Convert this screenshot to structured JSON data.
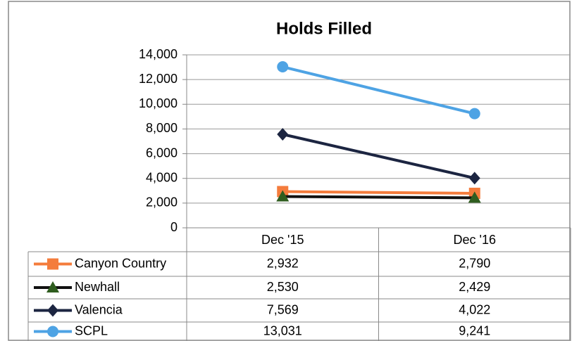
{
  "chart_data": {
    "type": "line",
    "title": "Holds Filled",
    "categories": [
      "Dec '15",
      "Dec '16"
    ],
    "series": [
      {
        "name": "Canyon Country",
        "color": "#f47c3c",
        "marker": "square",
        "marker_color": "#f47c3c",
        "values": [
          2932,
          2790
        ],
        "value_labels": [
          "2,932",
          "2,790"
        ]
      },
      {
        "name": "Newhall",
        "color": "#111111",
        "marker": "triangle",
        "marker_color": "#2f5d1f",
        "values": [
          2530,
          2429
        ],
        "value_labels": [
          "2,530",
          "2,429"
        ]
      },
      {
        "name": "Valencia",
        "color": "#1c2541",
        "marker": "diamond",
        "marker_color": "#1c2541",
        "values": [
          7569,
          4022
        ],
        "value_labels": [
          "7,569",
          "4,022"
        ]
      },
      {
        "name": "SCPL",
        "color": "#4ea3e4",
        "marker": "circle",
        "marker_color": "#4ea3e4",
        "values": [
          13031,
          9241
        ],
        "value_labels": [
          "13,031",
          "9,241"
        ]
      }
    ],
    "ylim": [
      0,
      14000
    ],
    "yticks": [
      0,
      {
        "value": 2000,
        "label": "2,000"
      },
      {
        "value": 4000,
        "label": "4,000"
      },
      {
        "value": 6000,
        "label": "6,000"
      },
      {
        "value": 8000,
        "label": "8,000"
      },
      {
        "value": 10000,
        "label": "10,000"
      },
      {
        "value": 12000,
        "label": "12,000"
      },
      {
        "value": 14000,
        "label": "14,000"
      }
    ],
    "grid": true
  }
}
